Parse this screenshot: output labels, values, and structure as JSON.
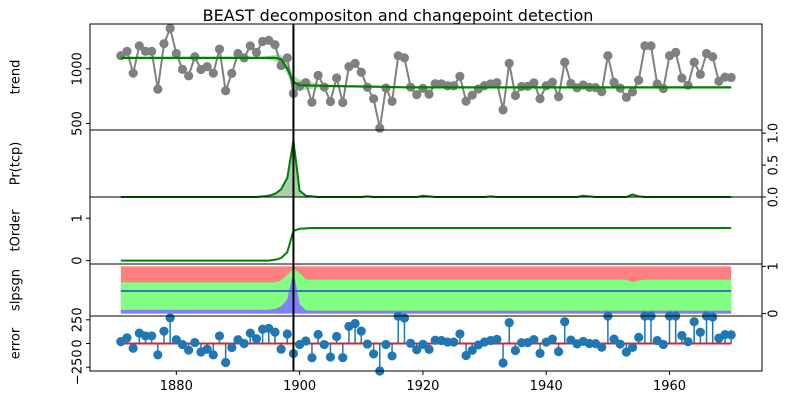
{
  "chart_data": {
    "type": "line",
    "title": "BEAST decompositon and changepoint detection",
    "x_range": [
      1866,
      1975
    ],
    "x_ticks": [
      1880,
      1900,
      1920,
      1940,
      1960
    ],
    "changepoint_year": 1899,
    "years": [
      1871,
      1872,
      1873,
      1874,
      1875,
      1876,
      1877,
      1878,
      1879,
      1880,
      1881,
      1882,
      1883,
      1884,
      1885,
      1886,
      1887,
      1888,
      1889,
      1890,
      1891,
      1892,
      1893,
      1894,
      1895,
      1896,
      1897,
      1898,
      1899,
      1900,
      1901,
      1902,
      1903,
      1904,
      1905,
      1906,
      1907,
      1908,
      1909,
      1910,
      1911,
      1912,
      1913,
      1914,
      1915,
      1916,
      1917,
      1918,
      1919,
      1920,
      1921,
      1922,
      1923,
      1924,
      1925,
      1926,
      1927,
      1928,
      1929,
      1930,
      1931,
      1932,
      1933,
      1934,
      1935,
      1936,
      1937,
      1938,
      1939,
      1940,
      1941,
      1942,
      1943,
      1944,
      1945,
      1946,
      1947,
      1948,
      1949,
      1950,
      1951,
      1952,
      1953,
      1954,
      1955,
      1956,
      1957,
      1958,
      1959,
      1960,
      1961,
      1962,
      1963,
      1964,
      1965,
      1966,
      1967,
      1968,
      1969,
      1970
    ],
    "panels": [
      {
        "name": "trend",
        "ylabel": "trend",
        "y_range": [
          440,
          1410
        ],
        "y_ticks": [
          500,
          1000
        ],
        "left_labels": [
          "500",
          "1000"
        ],
        "observed": [
          1120,
          1160,
          960,
          1210,
          1160,
          1160,
          813,
          1230,
          1370,
          1140,
          995,
          935,
          1110,
          994,
          1020,
          960,
          1180,
          799,
          958,
          1140,
          1100,
          1210,
          1150,
          1250,
          1260,
          1220,
          1030,
          1100,
          774,
          840,
          874,
          694,
          940,
          833,
          701,
          916,
          692,
          1020,
          1050,
          969,
          831,
          726,
          456,
          824,
          702,
          1120,
          1100,
          832,
          764,
          821,
          768,
          864,
          862,
          845,
          845,
          931,
          704,
          759,
          815,
          846,
          862,
          874,
          624,
          1050,
          756,
          838,
          840,
          871,
          726,
          845,
          877,
          744,
          1060,
          866,
          826,
          852,
          830,
          829,
          791,
          1120,
          876,
          823,
          739,
          789,
          895,
          1210,
          1210,
          861,
          820,
          1120,
          1150,
          915,
          849,
          1060,
          949,
          1140,
          1110,
          886,
          924,
          921
        ],
        "trend": [
          1100,
          1100,
          1100,
          1100,
          1100,
          1100,
          1100,
          1100,
          1100,
          1100,
          1100,
          1100,
          1100,
          1100,
          1100,
          1100,
          1100,
          1100,
          1100,
          1100,
          1100,
          1100,
          1100,
          1100,
          1100,
          1100,
          1090,
          1000,
          880,
          850,
          848,
          846,
          845,
          844,
          843,
          842,
          841,
          840,
          839,
          838,
          837,
          836,
          835,
          834,
          833,
          832,
          831,
          830,
          830,
          830,
          830,
          830,
          830,
          830,
          830,
          830,
          830,
          830,
          830,
          830,
          830,
          830,
          830,
          830,
          830,
          830,
          830,
          830,
          830,
          830,
          830,
          830,
          830,
          830,
          830,
          830,
          830,
          830,
          830,
          830,
          830,
          830,
          830,
          830,
          830,
          830,
          830,
          830,
          830,
          830,
          830,
          830,
          830,
          830,
          830,
          830,
          830,
          830,
          830,
          830
        ],
        "trend_band_peak_years": [
          1896,
          1902
        ]
      },
      {
        "name": "pr_tcp",
        "ylabel": "Pr(tcp)",
        "y_range": [
          0,
          1.05
        ],
        "y_ticks": [
          0,
          0.5,
          1
        ],
        "right_labels": [
          "0.0",
          "0.5",
          "1.0"
        ],
        "values": [
          0.0,
          0.0,
          0.0,
          0.0,
          0.0,
          0.0,
          0.0,
          0.0,
          0.0,
          0.0,
          0.0,
          0.0,
          0.0,
          0.0,
          0.0,
          0.0,
          0.0,
          0.0,
          0.0,
          0.0,
          0.0,
          0.0,
          0.0,
          0.01,
          0.02,
          0.05,
          0.12,
          0.3,
          0.88,
          0.1,
          0.02,
          0.01,
          0.0,
          0.0,
          0.0,
          0.0,
          0.0,
          0.0,
          0.0,
          0.0,
          0.01,
          0.0,
          0.0,
          0.0,
          0.0,
          0.0,
          0.0,
          0.0,
          0.0,
          0.02,
          0.01,
          0.0,
          0.0,
          0.0,
          0.0,
          0.0,
          0.0,
          0.0,
          0.0,
          0.0,
          0.01,
          0.0,
          0.0,
          0.0,
          0.0,
          0.0,
          0.0,
          0.0,
          0.0,
          0.0,
          0.0,
          0.0,
          0.0,
          0.0,
          0.0,
          0.02,
          0.01,
          0.0,
          0.0,
          0.0,
          0.0,
          0.0,
          0.0,
          0.04,
          0.01,
          0.0,
          0.0,
          0.0,
          0.0,
          0.0,
          0.0,
          0.0,
          0.0,
          0.0,
          0.0,
          0.0,
          0.0,
          0.0,
          0.0,
          0.0
        ]
      },
      {
        "name": "torder",
        "ylabel": "tOrder",
        "y_range": [
          -0.08,
          1.5
        ],
        "y_ticks": [
          0,
          1
        ],
        "left_labels": [
          "0",
          "1"
        ],
        "values": [
          0.0,
          0.0,
          0.0,
          0.0,
          0.0,
          0.0,
          0.0,
          0.0,
          0.0,
          0.0,
          0.0,
          0.0,
          0.0,
          0.0,
          0.0,
          0.0,
          0.0,
          0.0,
          0.0,
          0.0,
          0.0,
          0.0,
          0.0,
          0.0,
          0.0,
          0.02,
          0.06,
          0.2,
          0.7,
          0.75,
          0.76,
          0.77,
          0.77,
          0.77,
          0.77,
          0.77,
          0.77,
          0.77,
          0.77,
          0.77,
          0.77,
          0.77,
          0.77,
          0.77,
          0.77,
          0.77,
          0.77,
          0.77,
          0.77,
          0.77,
          0.77,
          0.77,
          0.77,
          0.77,
          0.77,
          0.77,
          0.77,
          0.77,
          0.77,
          0.77,
          0.77,
          0.77,
          0.77,
          0.77,
          0.77,
          0.77,
          0.77,
          0.77,
          0.77,
          0.77,
          0.77,
          0.77,
          0.77,
          0.77,
          0.77,
          0.77,
          0.77,
          0.77,
          0.77,
          0.77,
          0.77,
          0.77,
          0.77,
          0.77,
          0.77,
          0.77,
          0.77,
          0.77,
          0.77,
          0.77,
          0.77,
          0.77,
          0.77,
          0.77,
          0.77,
          0.77,
          0.77,
          0.77,
          0.77,
          0.77
        ]
      },
      {
        "name": "slpsgn",
        "ylabel": "slpsgn",
        "y_range": [
          -0.05,
          1.05
        ],
        "y_ticks": [
          0,
          1
        ],
        "right_labels": [
          "0",
          "1"
        ],
        "zero_line": 0.48,
        "upper_line": [
          0.66,
          0.66,
          0.66,
          0.66,
          0.66,
          0.66,
          0.66,
          0.66,
          0.66,
          0.66,
          0.66,
          0.66,
          0.66,
          0.66,
          0.66,
          0.66,
          0.66,
          0.66,
          0.66,
          0.66,
          0.66,
          0.66,
          0.66,
          0.66,
          0.66,
          0.66,
          0.7,
          0.82,
          0.95,
          0.86,
          0.72,
          0.72,
          0.72,
          0.72,
          0.72,
          0.72,
          0.72,
          0.72,
          0.72,
          0.72,
          0.72,
          0.72,
          0.72,
          0.72,
          0.72,
          0.72,
          0.72,
          0.72,
          0.72,
          0.72,
          0.72,
          0.72,
          0.72,
          0.72,
          0.72,
          0.72,
          0.72,
          0.72,
          0.72,
          0.72,
          0.72,
          0.72,
          0.72,
          0.72,
          0.72,
          0.72,
          0.72,
          0.72,
          0.72,
          0.72,
          0.72,
          0.72,
          0.72,
          0.72,
          0.72,
          0.72,
          0.72,
          0.72,
          0.72,
          0.72,
          0.72,
          0.72,
          0.72,
          0.66,
          0.7,
          0.72,
          0.72,
          0.72,
          0.72,
          0.72,
          0.72,
          0.72,
          0.72,
          0.72,
          0.72,
          0.72,
          0.72,
          0.72,
          0.72,
          0.72
        ],
        "lower_line": [
          0.08,
          0.08,
          0.08,
          0.08,
          0.08,
          0.08,
          0.08,
          0.08,
          0.08,
          0.08,
          0.08,
          0.08,
          0.08,
          0.08,
          0.08,
          0.08,
          0.08,
          0.08,
          0.08,
          0.08,
          0.08,
          0.08,
          0.08,
          0.08,
          0.08,
          0.1,
          0.15,
          0.3,
          0.9,
          0.2,
          0.07,
          0.06,
          0.06,
          0.06,
          0.06,
          0.06,
          0.06,
          0.06,
          0.06,
          0.06,
          0.06,
          0.06,
          0.06,
          0.06,
          0.06,
          0.06,
          0.06,
          0.06,
          0.06,
          0.06,
          0.06,
          0.06,
          0.06,
          0.06,
          0.06,
          0.06,
          0.06,
          0.06,
          0.06,
          0.06,
          0.06,
          0.06,
          0.06,
          0.06,
          0.06,
          0.06,
          0.06,
          0.06,
          0.06,
          0.06,
          0.06,
          0.06,
          0.06,
          0.06,
          0.06,
          0.06,
          0.06,
          0.06,
          0.06,
          0.06,
          0.06,
          0.06,
          0.06,
          0.06,
          0.06,
          0.06,
          0.06,
          0.06,
          0.06,
          0.06,
          0.06,
          0.06,
          0.06,
          0.06,
          0.06,
          0.06,
          0.06,
          0.06,
          0.06,
          0.06
        ]
      },
      {
        "name": "error",
        "ylabel": "error",
        "y_range": [
          -290,
          290
        ],
        "y_ticks": [
          -250,
          0,
          250
        ],
        "left_labels": [
          "−250",
          "0",
          "250"
        ],
        "values": [
          20,
          60,
          -50,
          110,
          80,
          80,
          -120,
          130,
          270,
          40,
          -10,
          -70,
          10,
          -90,
          -60,
          -120,
          80,
          -200,
          -42,
          40,
          0,
          110,
          50,
          150,
          160,
          120,
          -60,
          100,
          -106,
          -10,
          26,
          -150,
          95,
          -11,
          -142,
          74,
          -149,
          180,
          211,
          131,
          -6,
          -110,
          -379,
          -10,
          -131,
          288,
          269,
          2,
          -66,
          -9,
          -62,
          34,
          32,
          15,
          15,
          101,
          -126,
          -71,
          -15,
          16,
          32,
          44,
          -206,
          220,
          -74,
          8,
          10,
          41,
          -104,
          15,
          47,
          -86,
          230,
          36,
          -4,
          22,
          0,
          -1,
          -39,
          290,
          46,
          -7,
          -91,
          -41,
          65,
          380,
          380,
          31,
          -10,
          290,
          320,
          85,
          19,
          230,
          119,
          310,
          280,
          56,
          94,
          91
        ]
      }
    ],
    "colors": {
      "observed": "#808080",
      "trend": "#008000",
      "trend_band": "#b3deb3",
      "changepoint": "#000000",
      "slope_positive": "#ff8080",
      "slope_zero": "#80ff80",
      "slope_negative": "#8080ff",
      "slope_line": "#3f6fbf",
      "error_points": "#1f77b4",
      "error_zero": "#d62728"
    }
  }
}
